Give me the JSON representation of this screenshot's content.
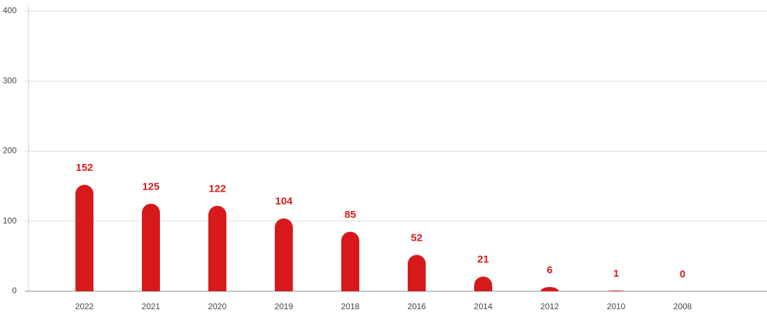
{
  "chart_data": {
    "type": "bar",
    "categories": [
      "2022",
      "2021",
      "2020",
      "2019",
      "2018",
      "2016",
      "2014",
      "2012",
      "2010",
      "2008"
    ],
    "values": [
      152,
      125,
      122,
      104,
      85,
      52,
      21,
      6,
      1,
      0
    ],
    "color": "#d7191c",
    "ylim": [
      0,
      400
    ],
    "yticks": [
      0,
      100,
      200,
      300,
      400
    ],
    "grid": true
  }
}
